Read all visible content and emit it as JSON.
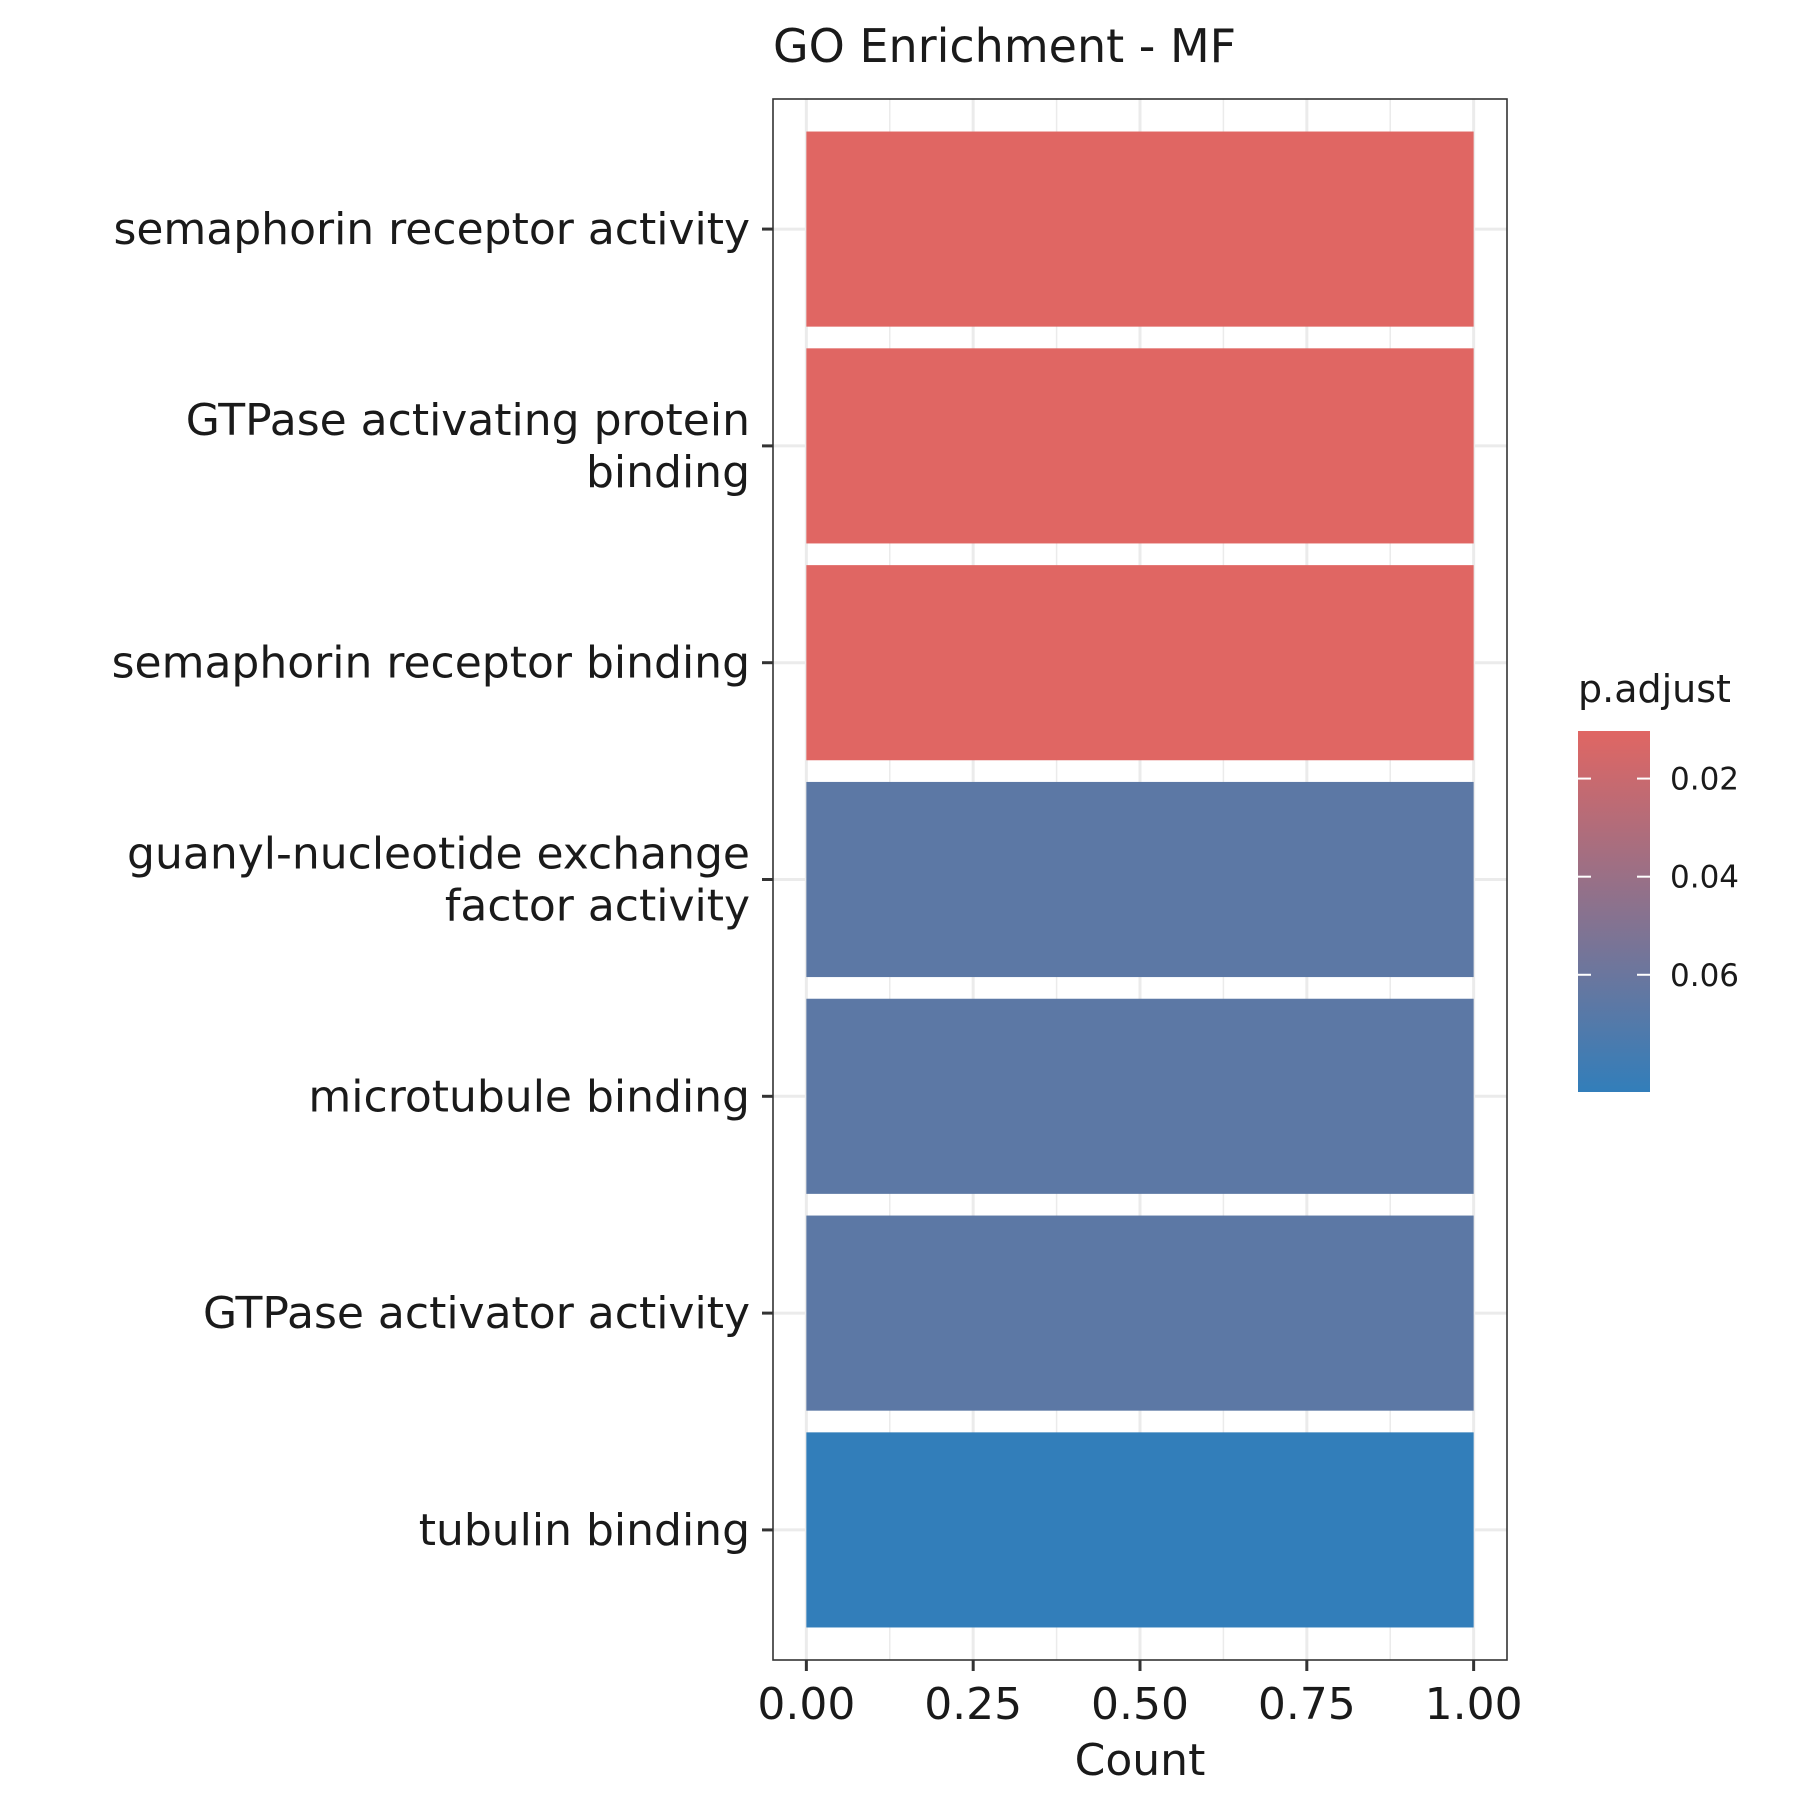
{
  "chart_data": {
    "type": "bar",
    "orientation": "horizontal",
    "title": "GO Enrichment - MF",
    "xlabel": "Count",
    "ylabel": "",
    "xlim": [
      -0.05,
      1.05
    ],
    "xticks": [
      {
        "value": 0.0,
        "label": "0.00"
      },
      {
        "value": 0.25,
        "label": "0.25"
      },
      {
        "value": 0.5,
        "label": "0.50"
      },
      {
        "value": 0.75,
        "label": "0.75"
      },
      {
        "value": 1.0,
        "label": "1.00"
      }
    ],
    "grid": true,
    "categories": [
      {
        "lines": [
          "semaphorin receptor activity"
        ]
      },
      {
        "lines": [
          "GTPase activating protein",
          "binding"
        ]
      },
      {
        "lines": [
          "semaphorin receptor binding"
        ]
      },
      {
        "lines": [
          "guanyl-nucleotide exchange",
          "factor activity"
        ]
      },
      {
        "lines": [
          "microtubule binding"
        ]
      },
      {
        "lines": [
          "GTPase activator activity"
        ]
      },
      {
        "lines": [
          "tubulin binding"
        ]
      }
    ],
    "values": [
      1,
      1,
      1,
      1,
      1,
      1,
      1
    ],
    "p_adjust": [
      0.0103,
      0.0103,
      0.0103,
      0.0663,
      0.0663,
      0.0663,
      0.0839
    ],
    "legend": {
      "title": "p.adjust",
      "placement": "right",
      "range": [
        0.0103,
        0.0839
      ],
      "color_low_p": "#e06663",
      "color_high_p": "#327eba",
      "ticks": [
        {
          "value": 0.02,
          "label": "0.02"
        },
        {
          "value": 0.04,
          "label": "0.04"
        },
        {
          "value": 0.06,
          "label": "0.06"
        }
      ]
    }
  }
}
